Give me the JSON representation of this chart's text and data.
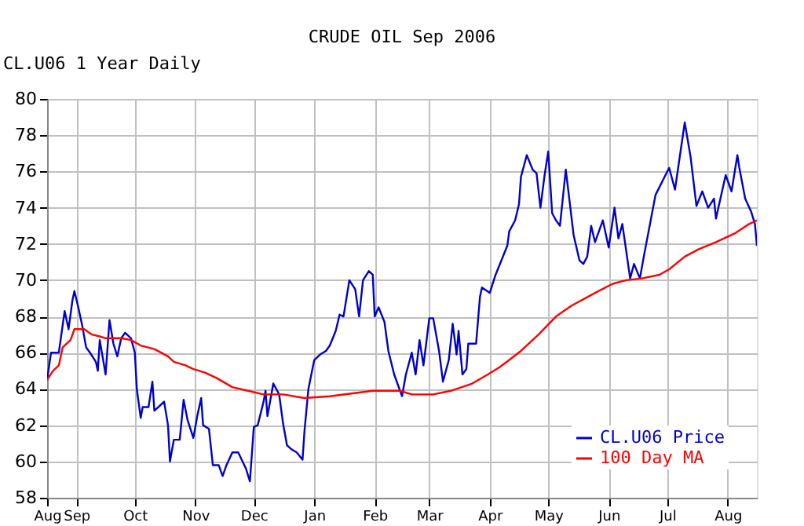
{
  "chart_data": {
    "type": "line",
    "title": "CRUDE OIL Sep 2006",
    "annotations": [
      "CL.U06 1 Year Daily"
    ],
    "xlim": [
      "2005-08-17",
      "2006-08-16"
    ],
    "ylim": [
      58,
      80
    ],
    "yticks": [
      58,
      60,
      62,
      64,
      66,
      68,
      70,
      72,
      74,
      76,
      78,
      80
    ],
    "xticks": [
      {
        "value": "2005-08-17",
        "label": "Aug"
      },
      {
        "value": "2005-09-01",
        "label": "Sep"
      },
      {
        "value": "2005-10-01",
        "label": "Oct"
      },
      {
        "value": "2005-11-01",
        "label": "Nov"
      },
      {
        "value": "2005-12-01",
        "label": "Dec"
      },
      {
        "value": "2006-01-01",
        "label": "Jan"
      },
      {
        "value": "2006-02-01",
        "label": "Feb"
      },
      {
        "value": "2006-03-01",
        "label": "Mar"
      },
      {
        "value": "2006-04-01",
        "label": "Apr"
      },
      {
        "value": "2006-05-01",
        "label": "May"
      },
      {
        "value": "2006-06-01",
        "label": "Jun"
      },
      {
        "value": "2006-07-01",
        "label": "Jul"
      },
      {
        "value": "2006-08-01",
        "label": "Aug"
      }
    ],
    "grid": true,
    "legend": "bottom right",
    "marker": "none",
    "line_style": "solid",
    "series": [
      {
        "name": "CL.U06 Price",
        "color": "#0000cc",
        "x": [
          "2005-08-17",
          "2005-08-19",
          "2005-08-23",
          "2005-08-26",
          "2005-08-28",
          "2005-08-30",
          "2005-08-31",
          "2005-09-02",
          "2005-09-04",
          "2005-09-06",
          "2005-09-08",
          "2005-09-11",
          "2005-09-12",
          "2005-09-13",
          "2005-09-16",
          "2005-09-18",
          "2005-09-20",
          "2005-09-22",
          "2005-09-24",
          "2005-09-26",
          "2005-09-29",
          "2005-10-01",
          "2005-10-02",
          "2005-10-04",
          "2005-10-05",
          "2005-10-08",
          "2005-10-10",
          "2005-10-11",
          "2005-10-13",
          "2005-10-16",
          "2005-10-18",
          "2005-10-19",
          "2005-10-21",
          "2005-10-24",
          "2005-10-26",
          "2005-10-28",
          "2005-10-31",
          "2005-11-02",
          "2005-11-04",
          "2005-11-05",
          "2005-11-08",
          "2005-11-10",
          "2005-11-13",
          "2005-11-15",
          "2005-11-17",
          "2005-11-20",
          "2005-11-23",
          "2005-11-27",
          "2005-11-29",
          "2005-12-01",
          "2005-12-03",
          "2005-12-06",
          "2005-12-07",
          "2005-12-08",
          "2005-12-11",
          "2005-12-14",
          "2005-12-16",
          "2005-12-18",
          "2005-12-20",
          "2005-12-23",
          "2005-12-26",
          "2005-12-27",
          "2005-12-29",
          "2006-01-01",
          "2006-01-04",
          "2006-01-07",
          "2006-01-09",
          "2006-01-12",
          "2006-01-14",
          "2006-01-16",
          "2006-01-19",
          "2006-01-22",
          "2006-01-24",
          "2006-01-26",
          "2006-01-29",
          "2006-01-31",
          "2006-02-01",
          "2006-02-03",
          "2006-02-06",
          "2006-02-08",
          "2006-02-11",
          "2006-02-15",
          "2006-02-17",
          "2006-02-20",
          "2006-02-22",
          "2006-02-24",
          "2006-02-26",
          "2006-03-01",
          "2006-03-03",
          "2006-03-06",
          "2006-03-08",
          "2006-03-09",
          "2006-03-11",
          "2006-03-13",
          "2006-03-15",
          "2006-03-16",
          "2006-03-18",
          "2006-03-20",
          "2006-03-21",
          "2006-03-25",
          "2006-03-27",
          "2006-03-28",
          "2006-04-01",
          "2006-04-04",
          "2006-04-10",
          "2006-04-11",
          "2006-04-14",
          "2006-04-16",
          "2006-04-17",
          "2006-04-20",
          "2006-04-23",
          "2006-04-25",
          "2006-04-27",
          "2006-04-29",
          "2006-05-01",
          "2006-05-03",
          "2006-05-05",
          "2006-05-07",
          "2006-05-10",
          "2006-05-14",
          "2006-05-17",
          "2006-05-19",
          "2006-05-21",
          "2006-05-23",
          "2006-05-25",
          "2006-05-29",
          "2006-06-01",
          "2006-06-04",
          "2006-06-06",
          "2006-06-08",
          "2006-06-12",
          "2006-06-14",
          "2006-06-17",
          "2006-06-19",
          "2006-06-25",
          "2006-07-02",
          "2006-07-05",
          "2006-07-10",
          "2006-07-13",
          "2006-07-16",
          "2006-07-19",
          "2006-07-22",
          "2006-07-25",
          "2006-07-26",
          "2006-07-31",
          "2006-08-03",
          "2006-08-06",
          "2006-08-07",
          "2006-08-10",
          "2006-08-13",
          "2006-08-15",
          "2006-08-16"
        ],
        "values": [
          64.5,
          66,
          66,
          68.3,
          67.3,
          68.9,
          69.4,
          68.5,
          67.5,
          66.3,
          66,
          65.5,
          65,
          66.7,
          64.8,
          67.8,
          66.5,
          65.8,
          66.8,
          67.1,
          66.8,
          66,
          64,
          62.4,
          63,
          63,
          64.4,
          62.8,
          63,
          63.3,
          62,
          60,
          61.2,
          61.2,
          63.4,
          62.3,
          61.3,
          62.5,
          63.5,
          62,
          61.8,
          59.8,
          59.8,
          59.2,
          59.8,
          60.5,
          60.5,
          59.6,
          58.9,
          61.9,
          62,
          63.3,
          63.9,
          62.5,
          64.3,
          63.7,
          62.1,
          60.9,
          60.7,
          60.5,
          60.1,
          61.7,
          64,
          65.6,
          65.9,
          66.1,
          66.4,
          67.2,
          68.1,
          68,
          70,
          69.5,
          68,
          70,
          70.5,
          70.3,
          68,
          68.5,
          67.7,
          66.1,
          64.8,
          63.6,
          64.8,
          66,
          64.8,
          66.7,
          65.3,
          67.9,
          67.9,
          66.1,
          64.4,
          64.8,
          65.6,
          67.6,
          65.9,
          67.2,
          64.8,
          65.1,
          66.5,
          66.5,
          69.1,
          69.6,
          69.3,
          70.3,
          71.9,
          72.7,
          73.3,
          74.2,
          75.7,
          76.9,
          76.1,
          75.9,
          74,
          75.7,
          77.1,
          73.7,
          73.3,
          73,
          76.1,
          72.5,
          71.1,
          70.9,
          71.3,
          73,
          72.1,
          73.3,
          71.8,
          74,
          72.3,
          73.1,
          70.1,
          70.9,
          70.1,
          71.3,
          74.7,
          76.2,
          75,
          78.7,
          76.8,
          74.1,
          74.9,
          74,
          74.5,
          73.4,
          75.8,
          74.9,
          76.9,
          76.2,
          74.5,
          73.8,
          73.1,
          71.9
        ]
      },
      {
        "name": "100 Day MA",
        "color": "#ff0000",
        "x": [
          "2005-08-17",
          "2005-08-20",
          "2005-08-23",
          "2005-08-25",
          "2005-08-29",
          "2005-08-31",
          "2005-09-05",
          "2005-09-09",
          "2005-09-13",
          "2005-09-16",
          "2005-09-24",
          "2005-09-29",
          "2005-10-04",
          "2005-10-11",
          "2005-10-18",
          "2005-10-21",
          "2005-10-27",
          "2005-10-31",
          "2005-11-06",
          "2005-11-12",
          "2005-11-20",
          "2005-11-28",
          "2005-12-06",
          "2005-12-16",
          "2005-12-27",
          "2006-01-09",
          "2006-01-31",
          "2006-02-14",
          "2006-02-20",
          "2006-03-03",
          "2006-03-12",
          "2006-03-23",
          "2006-03-31",
          "2006-04-06",
          "2006-04-11",
          "2006-04-17",
          "2006-04-26",
          "2006-05-05",
          "2006-05-13",
          "2006-05-25",
          "2006-06-03",
          "2006-06-10",
          "2006-06-18",
          "2006-06-27",
          "2006-07-02",
          "2006-07-10",
          "2006-07-17",
          "2006-07-26",
          "2006-08-05",
          "2006-08-12",
          "2006-08-16"
        ],
        "values": [
          64.5,
          65,
          65.3,
          66.3,
          66.7,
          67.3,
          67.3,
          67,
          66.9,
          66.8,
          66.8,
          66.7,
          66.4,
          66.2,
          65.8,
          65.5,
          65.3,
          65.1,
          64.9,
          64.6,
          64.1,
          63.9,
          63.7,
          63.7,
          63.5,
          63.6,
          63.9,
          63.9,
          63.7,
          63.7,
          63.9,
          64.3,
          64.8,
          65.2,
          65.6,
          66.1,
          67,
          68,
          68.6,
          69.3,
          69.8,
          70,
          70.1,
          70.3,
          70.6,
          71.3,
          71.7,
          72.1,
          72.6,
          73.1,
          73.3
        ]
      }
    ]
  }
}
